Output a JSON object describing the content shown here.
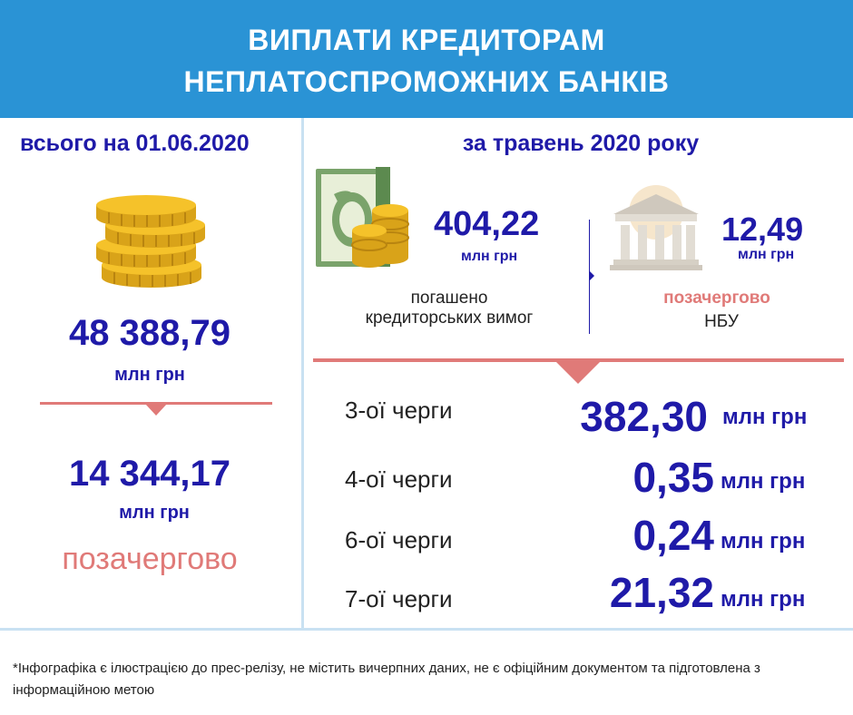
{
  "header": {
    "line1": "ВИПЛАТИ КРЕДИТОРАМ",
    "line2": "НЕПЛАТОСПРОМОЖНИХ БАНКІВ"
  },
  "left": {
    "title": "всього на 01.06.2020",
    "total_value": "48 388,79",
    "total_unit": "млн грн",
    "priority_value": "14 344,17",
    "priority_unit": "млн грн",
    "priority_label": "позачергово"
  },
  "right": {
    "title": "за травень 2020 року",
    "repaid_value": "404,22",
    "repaid_unit": "млн грн",
    "repaid_label_1": "погашено",
    "repaid_label_2": "кредиторських вимог",
    "nbu_value": "12,49",
    "nbu_unit": "млн грн",
    "nbu_label_1": "позачергово",
    "nbu_label_2": "НБУ",
    "rows": [
      {
        "label": "3-ої черги",
        "value": "382,30",
        "unit": "млн грн"
      },
      {
        "label": "4-ої черги",
        "value": "0,35",
        "unit": "млн грн"
      },
      {
        "label": "6-ої черги",
        "value": "0,24",
        "unit": "млн грн"
      },
      {
        "label": "7-ої черги",
        "value": "21,32",
        "unit": "млн грн"
      }
    ]
  },
  "footer": {
    "note": "*Інфографіка є ілюстрацією до прес-релізу, не містить вичерпних даних, не є офіційним документом та підготовлена з інформаційною метою"
  },
  "colors": {
    "header_bg": "#2a93d5",
    "value_blue": "#1f1aa8",
    "accent_pink": "#e07a78",
    "divider": "#c9e1f2"
  },
  "icons": [
    "coins-stack-icon",
    "money-coins-icon",
    "bank-building-icon"
  ]
}
